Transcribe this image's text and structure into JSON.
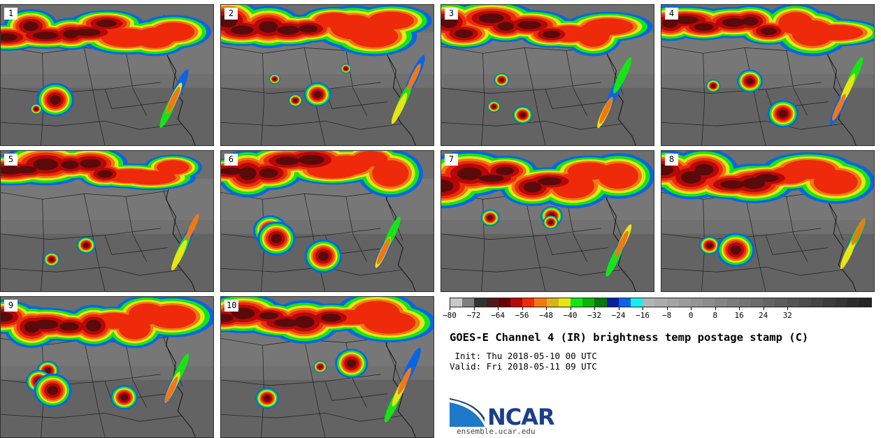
{
  "panels": [
    {
      "label": "1"
    },
    {
      "label": "2"
    },
    {
      "label": "3"
    },
    {
      "label": "4"
    },
    {
      "label": "5"
    },
    {
      "label": "6"
    },
    {
      "label": "7"
    },
    {
      "label": "8"
    },
    {
      "label": "9"
    },
    {
      "label": "10"
    }
  ],
  "colorbar": {
    "colors": [
      "#c8c8c8",
      "#7e7e7e",
      "#323232",
      "#4d1a1a",
      "#6a0000",
      "#b50808",
      "#ee2a0a",
      "#f07814",
      "#d8b418",
      "#e6e614",
      "#14e614",
      "#0ab40a",
      "#087808",
      "#0a1ea0",
      "#0a64e6",
      "#14f0f0",
      "#b4b4b4",
      "#acacac",
      "#a4a4a4",
      "#9c9c9c",
      "#949494",
      "#8c8c8c",
      "#848484",
      "#7c7c7c",
      "#747474",
      "#6c6c6c",
      "#646464",
      "#5c5c5c",
      "#545454",
      "#4c4c4c",
      "#444444",
      "#3c3c3c",
      "#343434",
      "#2c2c2c",
      "#242424"
    ],
    "ticks": [
      "−80",
      "−72",
      "−64",
      "−56",
      "−48",
      "−40",
      "−32",
      "−24",
      "−16",
      "−8",
      "0",
      "8",
      "16",
      "24",
      "32"
    ]
  },
  "title": "GOES-E Channel 4 (IR) brightness temp postage stamp (C)",
  "init": " Init: Thu 2018-05-10 00 UTC",
  "valid": "Valid: Fri 2018-05-11 09 UTC",
  "logo": {
    "name": "NCAR",
    "url": "ensemble.ucar.edu"
  }
}
